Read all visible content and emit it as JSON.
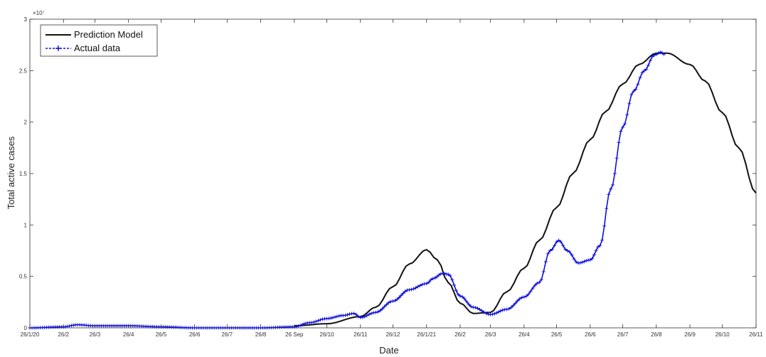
{
  "chart_data": {
    "type": "line",
    "xlabel": "Date",
    "ylabel": "Total active cases",
    "y_exponent_label": "×10⁷",
    "y_scale": 10000000,
    "ylim": [
      0,
      3
    ],
    "yticks": [
      0,
      0.5,
      1,
      1.5,
      2,
      2.5,
      3
    ],
    "ytick_labels": [
      "0",
      "0.5",
      "1",
      "1.5",
      "2",
      "2.5",
      "3"
    ],
    "xlim": [
      "2020-01-26",
      "2021-11-26"
    ],
    "xtick_dates": [
      "2020-01-26",
      "2020-02-26",
      "2020-03-26",
      "2020-04-26",
      "2020-05-26",
      "2020-06-26",
      "2020-07-26",
      "2020-08-26",
      "2020-09-26",
      "2020-10-26",
      "2020-11-26",
      "2020-12-26",
      "2021-01-26",
      "2021-02-26",
      "2021-03-26",
      "2021-04-26",
      "2021-05-26",
      "2021-06-26",
      "2021-07-26",
      "2021-08-26",
      "2021-09-26",
      "2021-10-26",
      "2021-11-26"
    ],
    "xtick_labels": [
      "26/1/20",
      "26/2",
      "26/3",
      "26/4",
      "26/5",
      "26/6",
      "26/7",
      "26/8",
      "26 Sep",
      "26/10",
      "26/11",
      "26/12",
      "26/1/21",
      "26/2",
      "26/3",
      "26/4",
      "26/5",
      "26/6",
      "26/7",
      "26/8",
      "26/9",
      "26/10",
      "26/11"
    ],
    "grid": false,
    "legend_position": "top-left",
    "series": [
      {
        "name": "Prediction Model",
        "color": "#111111",
        "marker": "none",
        "points": [
          [
            "2020-09-26",
            0.02
          ],
          [
            "2020-10-26",
            0.04
          ],
          [
            "2020-11-26",
            0.11
          ],
          [
            "2020-12-10",
            0.2
          ],
          [
            "2020-12-26",
            0.4
          ],
          [
            "2021-01-10",
            0.62
          ],
          [
            "2021-01-26",
            0.76
          ],
          [
            "2021-02-05",
            0.66
          ],
          [
            "2021-02-15",
            0.44
          ],
          [
            "2021-02-26",
            0.24
          ],
          [
            "2021-03-10",
            0.14
          ],
          [
            "2021-03-26",
            0.15
          ],
          [
            "2021-04-10",
            0.35
          ],
          [
            "2021-04-26",
            0.58
          ],
          [
            "2021-05-10",
            0.85
          ],
          [
            "2021-05-26",
            1.17
          ],
          [
            "2021-06-10",
            1.5
          ],
          [
            "2021-06-26",
            1.83
          ],
          [
            "2021-07-10",
            2.1
          ],
          [
            "2021-07-26",
            2.37
          ],
          [
            "2021-08-10",
            2.56
          ],
          [
            "2021-08-26",
            2.67
          ],
          [
            "2021-09-05",
            2.67
          ],
          [
            "2021-09-26",
            2.56
          ],
          [
            "2021-10-10",
            2.4
          ],
          [
            "2021-10-26",
            2.09
          ],
          [
            "2021-11-10",
            1.75
          ],
          [
            "2021-11-26",
            1.31
          ]
        ]
      },
      {
        "name": "Actual data",
        "color": "#1010d8",
        "marker": "+",
        "points": [
          [
            "2020-01-26",
            0.0
          ],
          [
            "2020-02-26",
            0.01
          ],
          [
            "2020-03-10",
            0.03
          ],
          [
            "2020-03-26",
            0.02
          ],
          [
            "2020-04-26",
            0.02
          ],
          [
            "2020-05-26",
            0.01
          ],
          [
            "2020-06-26",
            0.0
          ],
          [
            "2020-07-26",
            0.0
          ],
          [
            "2020-08-26",
            0.0
          ],
          [
            "2020-09-26",
            0.01
          ],
          [
            "2020-10-10",
            0.05
          ],
          [
            "2020-10-26",
            0.09
          ],
          [
            "2020-11-10",
            0.12
          ],
          [
            "2020-11-20",
            0.14
          ],
          [
            "2020-11-26",
            0.1
          ],
          [
            "2020-12-10",
            0.15
          ],
          [
            "2020-12-26",
            0.26
          ],
          [
            "2021-01-10",
            0.37
          ],
          [
            "2021-01-26",
            0.43
          ],
          [
            "2021-02-01",
            0.48
          ],
          [
            "2021-02-10",
            0.53
          ],
          [
            "2021-02-15",
            0.52
          ],
          [
            "2021-02-26",
            0.31
          ],
          [
            "2021-03-10",
            0.2
          ],
          [
            "2021-03-26",
            0.13
          ],
          [
            "2021-04-10",
            0.18
          ],
          [
            "2021-04-26",
            0.3
          ],
          [
            "2021-05-10",
            0.44
          ],
          [
            "2021-05-20",
            0.75
          ],
          [
            "2021-05-28",
            0.85
          ],
          [
            "2021-06-05",
            0.75
          ],
          [
            "2021-06-15",
            0.63
          ],
          [
            "2021-06-26",
            0.66
          ],
          [
            "2021-07-05",
            0.8
          ],
          [
            "2021-07-15",
            1.35
          ],
          [
            "2021-07-26",
            1.95
          ],
          [
            "2021-08-05",
            2.3
          ],
          [
            "2021-08-15",
            2.5
          ],
          [
            "2021-08-24",
            2.65
          ],
          [
            "2021-08-30",
            2.68
          ],
          [
            "2021-09-02",
            2.66
          ]
        ]
      }
    ]
  }
}
